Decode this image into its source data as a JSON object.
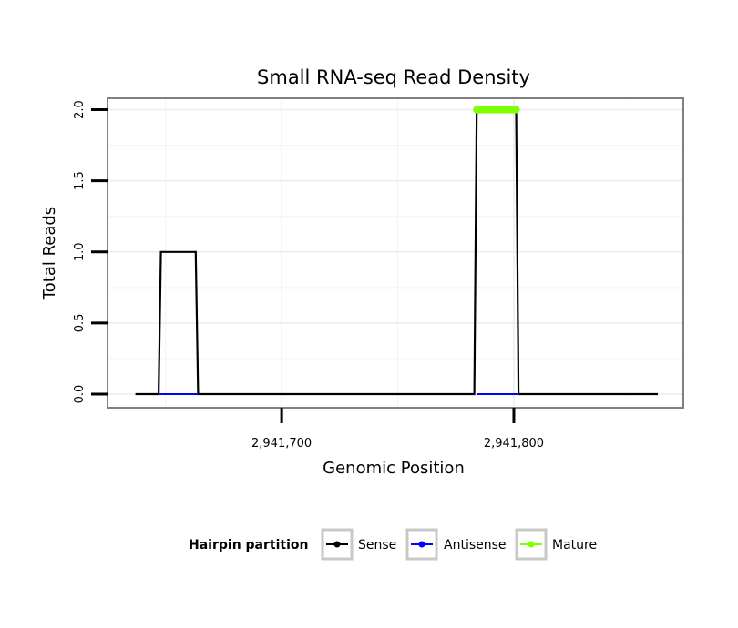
{
  "chart_data": {
    "type": "line",
    "title": "Small RNA-seq Read Density",
    "xlabel": "Genomic Position",
    "ylabel": "Total Reads",
    "xlim": [
      2941625,
      2941873
    ],
    "ylim": [
      0,
      2.08
    ],
    "x_ticks": [
      {
        "value": 2941700,
        "label": "2,941,700"
      },
      {
        "value": 2941800,
        "label": "2,941,800"
      }
    ],
    "y_ticks": [
      {
        "value": 0,
        "label": "0.0"
      },
      {
        "value": 0.5,
        "label": "0.5"
      },
      {
        "value": 1,
        "label": "1.0"
      },
      {
        "value": 1.5,
        "label": "1.5"
      },
      {
        "value": 2,
        "label": "2.0"
      }
    ],
    "grid": true,
    "series": [
      {
        "name": "Sense",
        "color": "#000000",
        "x": [
          2941637,
          2941647,
          2941648,
          2941663,
          2941664,
          2941783,
          2941784,
          2941801,
          2941802,
          2941862
        ],
        "y": [
          0,
          0,
          1,
          1,
          0,
          0,
          2,
          2,
          0,
          0
        ]
      },
      {
        "name": "Antisense",
        "color": "#0000ff",
        "x": [
          2941647,
          2941664,
          2941784,
          2941802
        ],
        "y": [
          0,
          0,
          0,
          0
        ],
        "segments": [
          [
            2941647,
            2941664
          ],
          [
            2941784,
            2941802
          ]
        ]
      },
      {
        "name": "Mature",
        "color": "#7fff00",
        "x": [
          2941784,
          2941801
        ],
        "y": [
          2,
          2
        ]
      }
    ],
    "legend": {
      "title": "Hairpin partition",
      "position": "bottom",
      "entries": [
        "Sense",
        "Antisense",
        "Mature"
      ]
    }
  }
}
